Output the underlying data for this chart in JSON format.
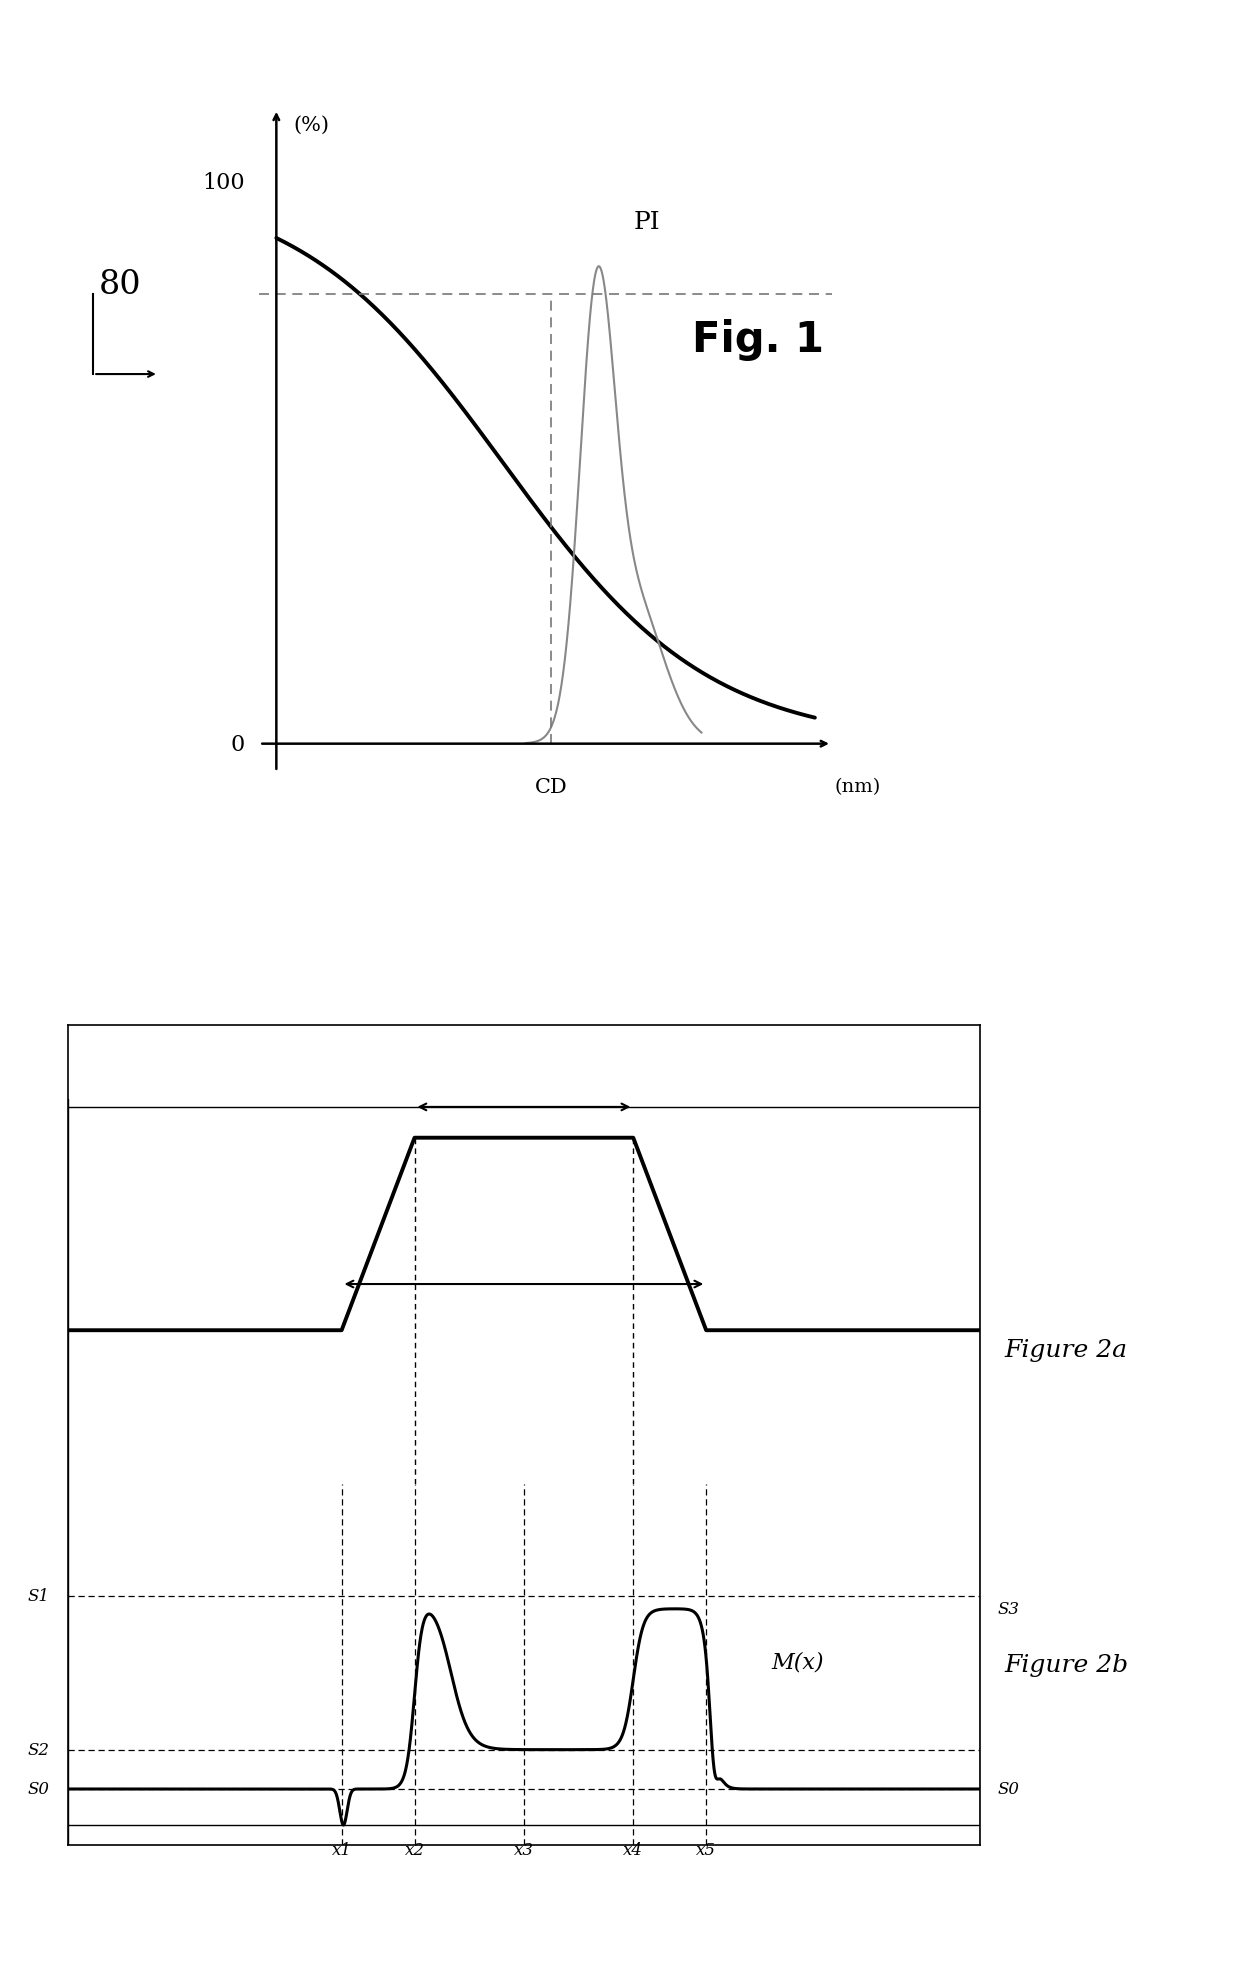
{
  "fig1": {
    "title": "Fig. 1",
    "ylabel": "(%)",
    "xlabel": "(nm)",
    "label_100": "100",
    "label_80": "80",
    "label_0": "0",
    "label_CD": "CD",
    "label_PI": "PI",
    "dashed_color": "#777777"
  },
  "fig2a": {
    "title": "Figure 2a"
  },
  "fig2b": {
    "title": "Figure 2b",
    "label_S1": "S1",
    "label_S2": "S2",
    "label_S0": "S0",
    "label_S3": "S3",
    "label_Mx": "M(x)",
    "label_x1": "x1",
    "label_x2": "x2",
    "label_x3": "x3",
    "label_x4": "x4",
    "label_x5": "x5"
  },
  "bg": "#ffffff",
  "lc": "#000000"
}
